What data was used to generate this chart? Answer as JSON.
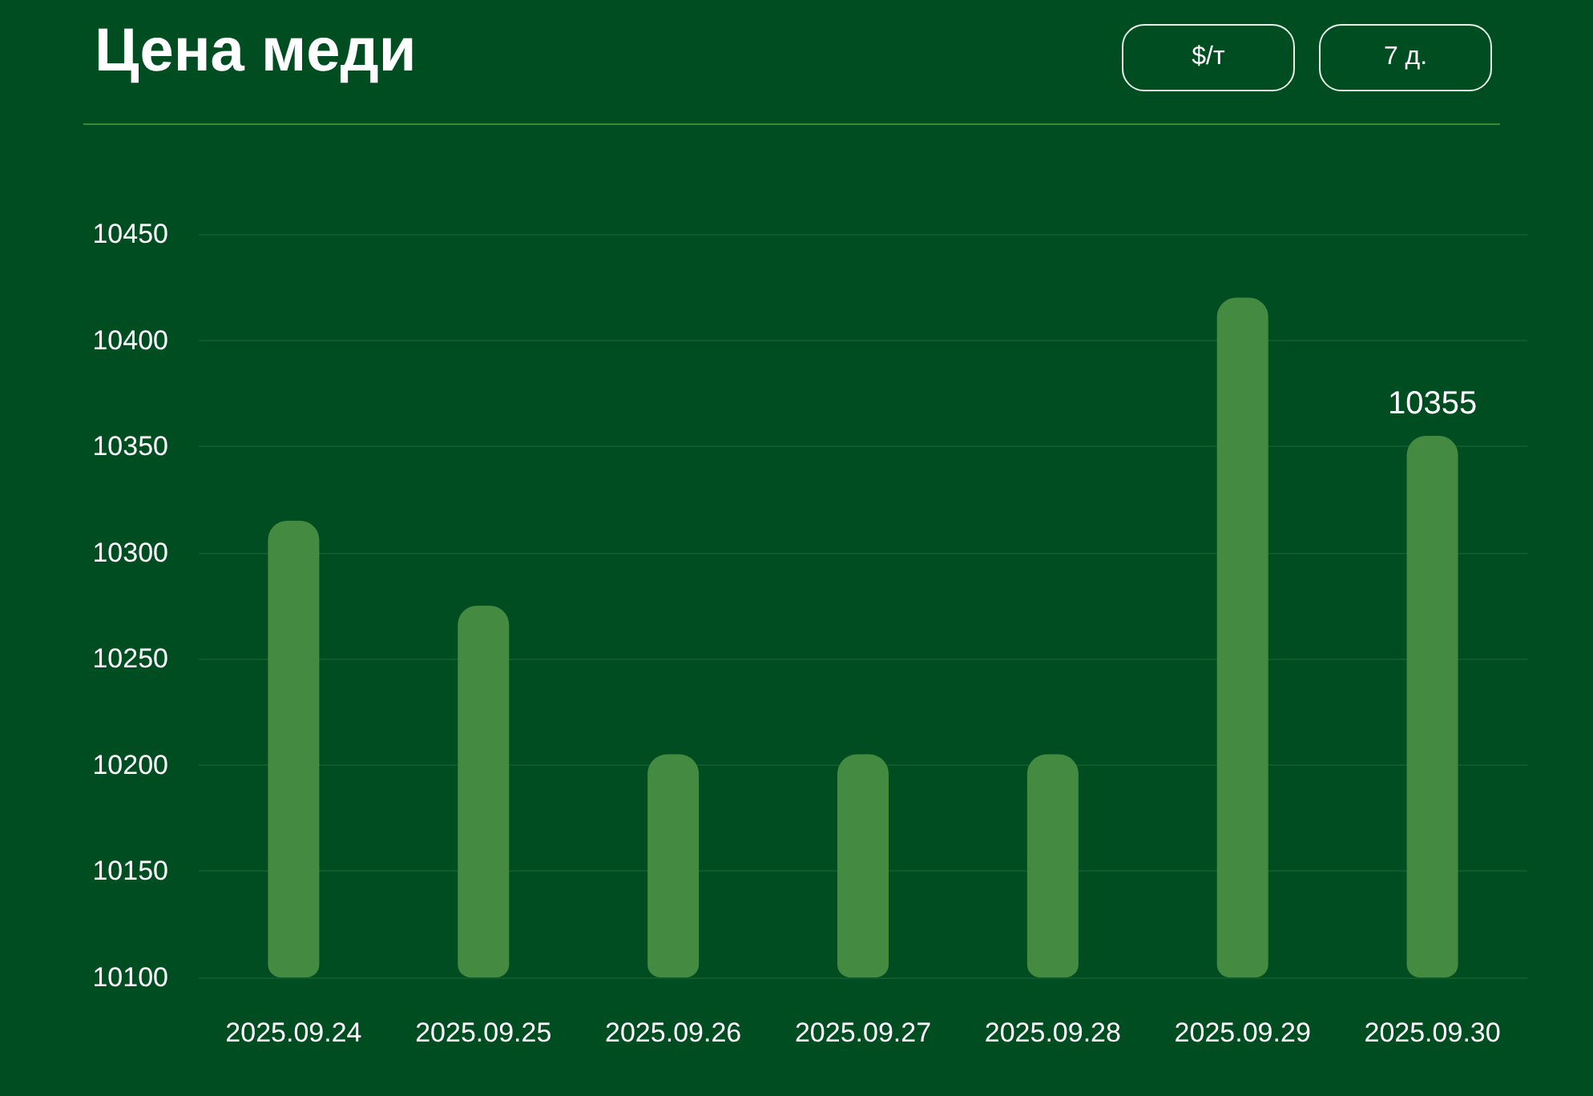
{
  "chart_data": {
    "type": "bar",
    "title": "Цена меди",
    "annotations": [
      "$/т",
      "7 д."
    ],
    "categories": [
      "2025.09.24",
      "2025.09.25",
      "2025.09.26",
      "2025.09.27",
      "2025.09.28",
      "2025.09.29",
      "2025.09.30"
    ],
    "values": [
      10315,
      10275,
      10205,
      10205,
      10205,
      10420,
      10355
    ],
    "color": "#458a41",
    "value_labels": [
      null,
      null,
      null,
      null,
      null,
      null,
      "10355"
    ],
    "ylim": [
      10100,
      10450
    ],
    "yticks": [
      10100,
      10150,
      10200,
      10250,
      10300,
      10350,
      10400,
      10450
    ],
    "grid": "y"
  }
}
